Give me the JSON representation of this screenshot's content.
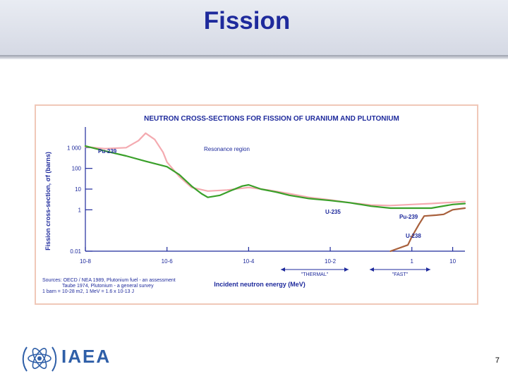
{
  "slide": {
    "title": "Fission",
    "page_number": "7",
    "logo_text": "IAEA"
  },
  "colors": {
    "title": "#1e2a9c",
    "u235": "#3aa02a",
    "pu239": "#f4aab0",
    "u238": "#a8603c",
    "chart_title": "#1e2a9c",
    "axis": "#1e2a9c"
  },
  "chart_data": {
    "type": "line",
    "title": "NEUTRON CROSS-SECTIONS FOR FISSION OF URANIUM AND PLUTONIUM",
    "xlabel": "Incident neutron energy (MeV)",
    "ylabel": "Fission cross-section, σf (barns)",
    "x_scale": "log",
    "y_scale": "log",
    "xlim": [
      1e-08,
      20
    ],
    "ylim": [
      0.01,
      10000
    ],
    "x_ticks": [
      {
        "value": 1e-08,
        "label": "10-8"
      },
      {
        "value": 1e-06,
        "label": "10-6"
      },
      {
        "value": 0.0001,
        "label": "10-4"
      },
      {
        "value": 0.01,
        "label": "10-2"
      },
      {
        "value": 1,
        "label": "1"
      },
      {
        "value": 10,
        "label": "10"
      }
    ],
    "y_ticks": [
      {
        "value": 1000,
        "label": "1 000"
      },
      {
        "value": 100,
        "label": "100"
      },
      {
        "value": 10,
        "label": "10"
      },
      {
        "value": 1,
        "label": "1"
      },
      {
        "value": 0.01,
        "label": "0.01"
      }
    ],
    "series": [
      {
        "name": "U-235",
        "color": "#3aa02a",
        "x": [
          1e-08,
          3e-08,
          1e-07,
          3e-07,
          1e-06,
          2e-06,
          4e-06,
          7e-06,
          1e-05,
          2e-05,
          4e-05,
          7e-05,
          0.0001,
          0.0002,
          0.0005,
          0.001,
          0.003,
          0.01,
          0.03,
          0.1,
          0.3,
          1,
          3,
          10,
          20
        ],
        "y": [
          1200,
          700,
          400,
          220,
          120,
          50,
          14,
          6,
          4,
          5,
          9,
          14,
          16,
          10,
          7,
          5,
          3.5,
          2.8,
          2.2,
          1.5,
          1.2,
          1.2,
          1.2,
          1.8,
          2.0
        ]
      },
      {
        "name": "Pu-239",
        "color": "#f4aab0",
        "x": [
          1e-08,
          3e-08,
          1e-07,
          2e-07,
          3e-07,
          5e-07,
          8e-07,
          1e-06,
          2e-06,
          4e-06,
          1e-05,
          3e-05,
          0.0001,
          0.0003,
          0.001,
          0.003,
          0.01,
          0.03,
          0.1,
          0.3,
          1,
          3,
          10,
          20
        ],
        "y": [
          1100,
          900,
          1000,
          2200,
          5000,
          2500,
          600,
          200,
          40,
          12,
          8,
          9,
          12,
          9,
          6,
          4,
          3,
          2.2,
          1.7,
          1.6,
          1.8,
          2.0,
          2.3,
          2.5
        ]
      },
      {
        "name": "U-238",
        "color": "#a8603c",
        "x": [
          0.3,
          0.8,
          1,
          1.5,
          2,
          4,
          6,
          10,
          20
        ],
        "y": [
          0.01,
          0.02,
          0.05,
          0.2,
          0.5,
          0.55,
          0.6,
          1.0,
          1.2
        ]
      }
    ],
    "annotations": {
      "resonance_region": "Resonance region",
      "label_pu239_top": "Pu-239",
      "label_u235": "U-235",
      "label_pu239_right": "Pu-239",
      "label_u238": "U-238",
      "thermal": "\"THERMAL\"",
      "fast": "\"FAST\""
    },
    "sources": [
      "Sources: OECD / NEA 1989, Plutonium fuel - an assessment",
      "Taube 1974, Plutonium - a general survey",
      "1 barn = 10-28 m2, 1 MeV = 1.6 x 10-13 J"
    ],
    "grid": false,
    "legend": "none (series labeled inline)"
  }
}
